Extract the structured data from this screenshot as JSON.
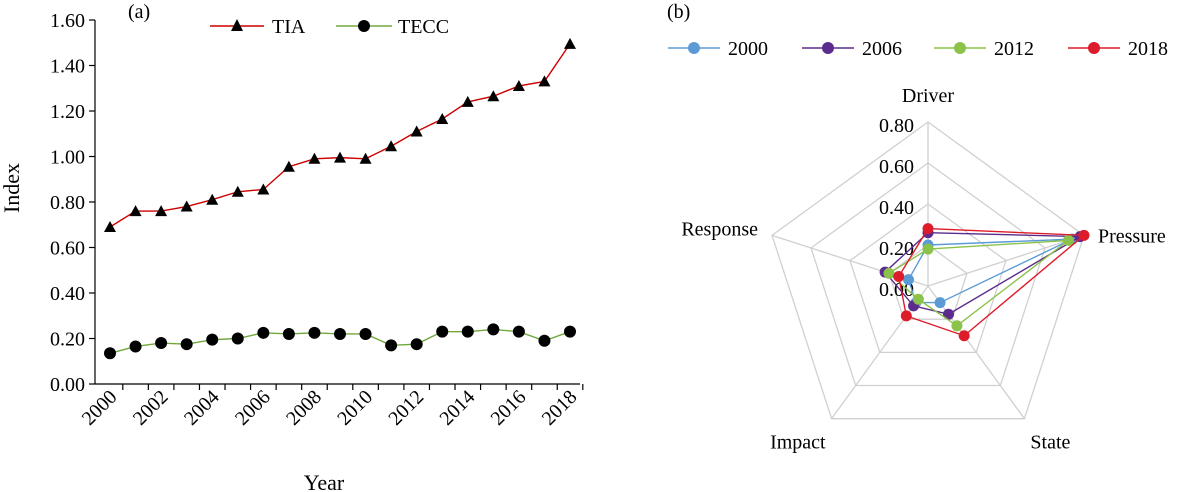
{
  "chart_data": [
    {
      "panel_label": "(a)",
      "type": "line",
      "xlabel": "Year",
      "ylabel": "Index",
      "ylim": [
        0,
        1.6
      ],
      "yticks": [
        "0.00",
        "0.20",
        "0.40",
        "0.60",
        "0.80",
        "1.00",
        "1.20",
        "1.40",
        "1.60"
      ],
      "xticks": [
        "2000",
        "2002",
        "2004",
        "2006",
        "2008",
        "2010",
        "2012",
        "2014",
        "2016",
        "2018"
      ],
      "grid": false,
      "legend_position": "top",
      "x": [
        2000,
        2001,
        2002,
        2003,
        2004,
        2005,
        2006,
        2007,
        2008,
        2009,
        2010,
        2011,
        2012,
        2013,
        2014,
        2015,
        2016,
        2017,
        2018
      ],
      "series": [
        {
          "name": "TIA",
          "color": "#cc0000",
          "marker": "triangle",
          "values": [
            0.69,
            0.76,
            0.76,
            0.78,
            0.81,
            0.845,
            0.855,
            0.955,
            0.99,
            0.995,
            0.99,
            1.045,
            1.11,
            1.165,
            1.24,
            1.265,
            1.31,
            1.33,
            1.495
          ]
        },
        {
          "name": "TECC",
          "color": "#70a83c",
          "marker": "circle",
          "values": [
            0.135,
            0.165,
            0.18,
            0.175,
            0.195,
            0.2,
            0.225,
            0.22,
            0.225,
            0.22,
            0.22,
            0.17,
            0.175,
            0.23,
            0.23,
            0.24,
            0.23,
            0.19,
            0.23
          ]
        }
      ]
    },
    {
      "panel_label": "(b)",
      "type": "radar",
      "axes": [
        "Driver",
        "Pressure",
        "State",
        "Impact",
        "Response"
      ],
      "rlim": [
        0,
        0.8
      ],
      "rticks": [
        "0.00",
        "0.20",
        "0.40",
        "0.60",
        "0.80"
      ],
      "legend_position": "top",
      "series": [
        {
          "name": "2000",
          "color": "#5b9bd5",
          "values": [
            0.2,
            0.74,
            0.1,
            0.1,
            0.1
          ]
        },
        {
          "name": "2006",
          "color": "#5b2c8c",
          "values": [
            0.26,
            0.78,
            0.17,
            0.12,
            0.22
          ]
        },
        {
          "name": "2012",
          "color": "#8bc34a",
          "values": [
            0.18,
            0.72,
            0.24,
            0.08,
            0.2
          ]
        },
        {
          "name": "2018",
          "color": "#dd1c2b",
          "values": [
            0.28,
            0.8,
            0.3,
            0.18,
            0.15
          ]
        }
      ]
    }
  ]
}
